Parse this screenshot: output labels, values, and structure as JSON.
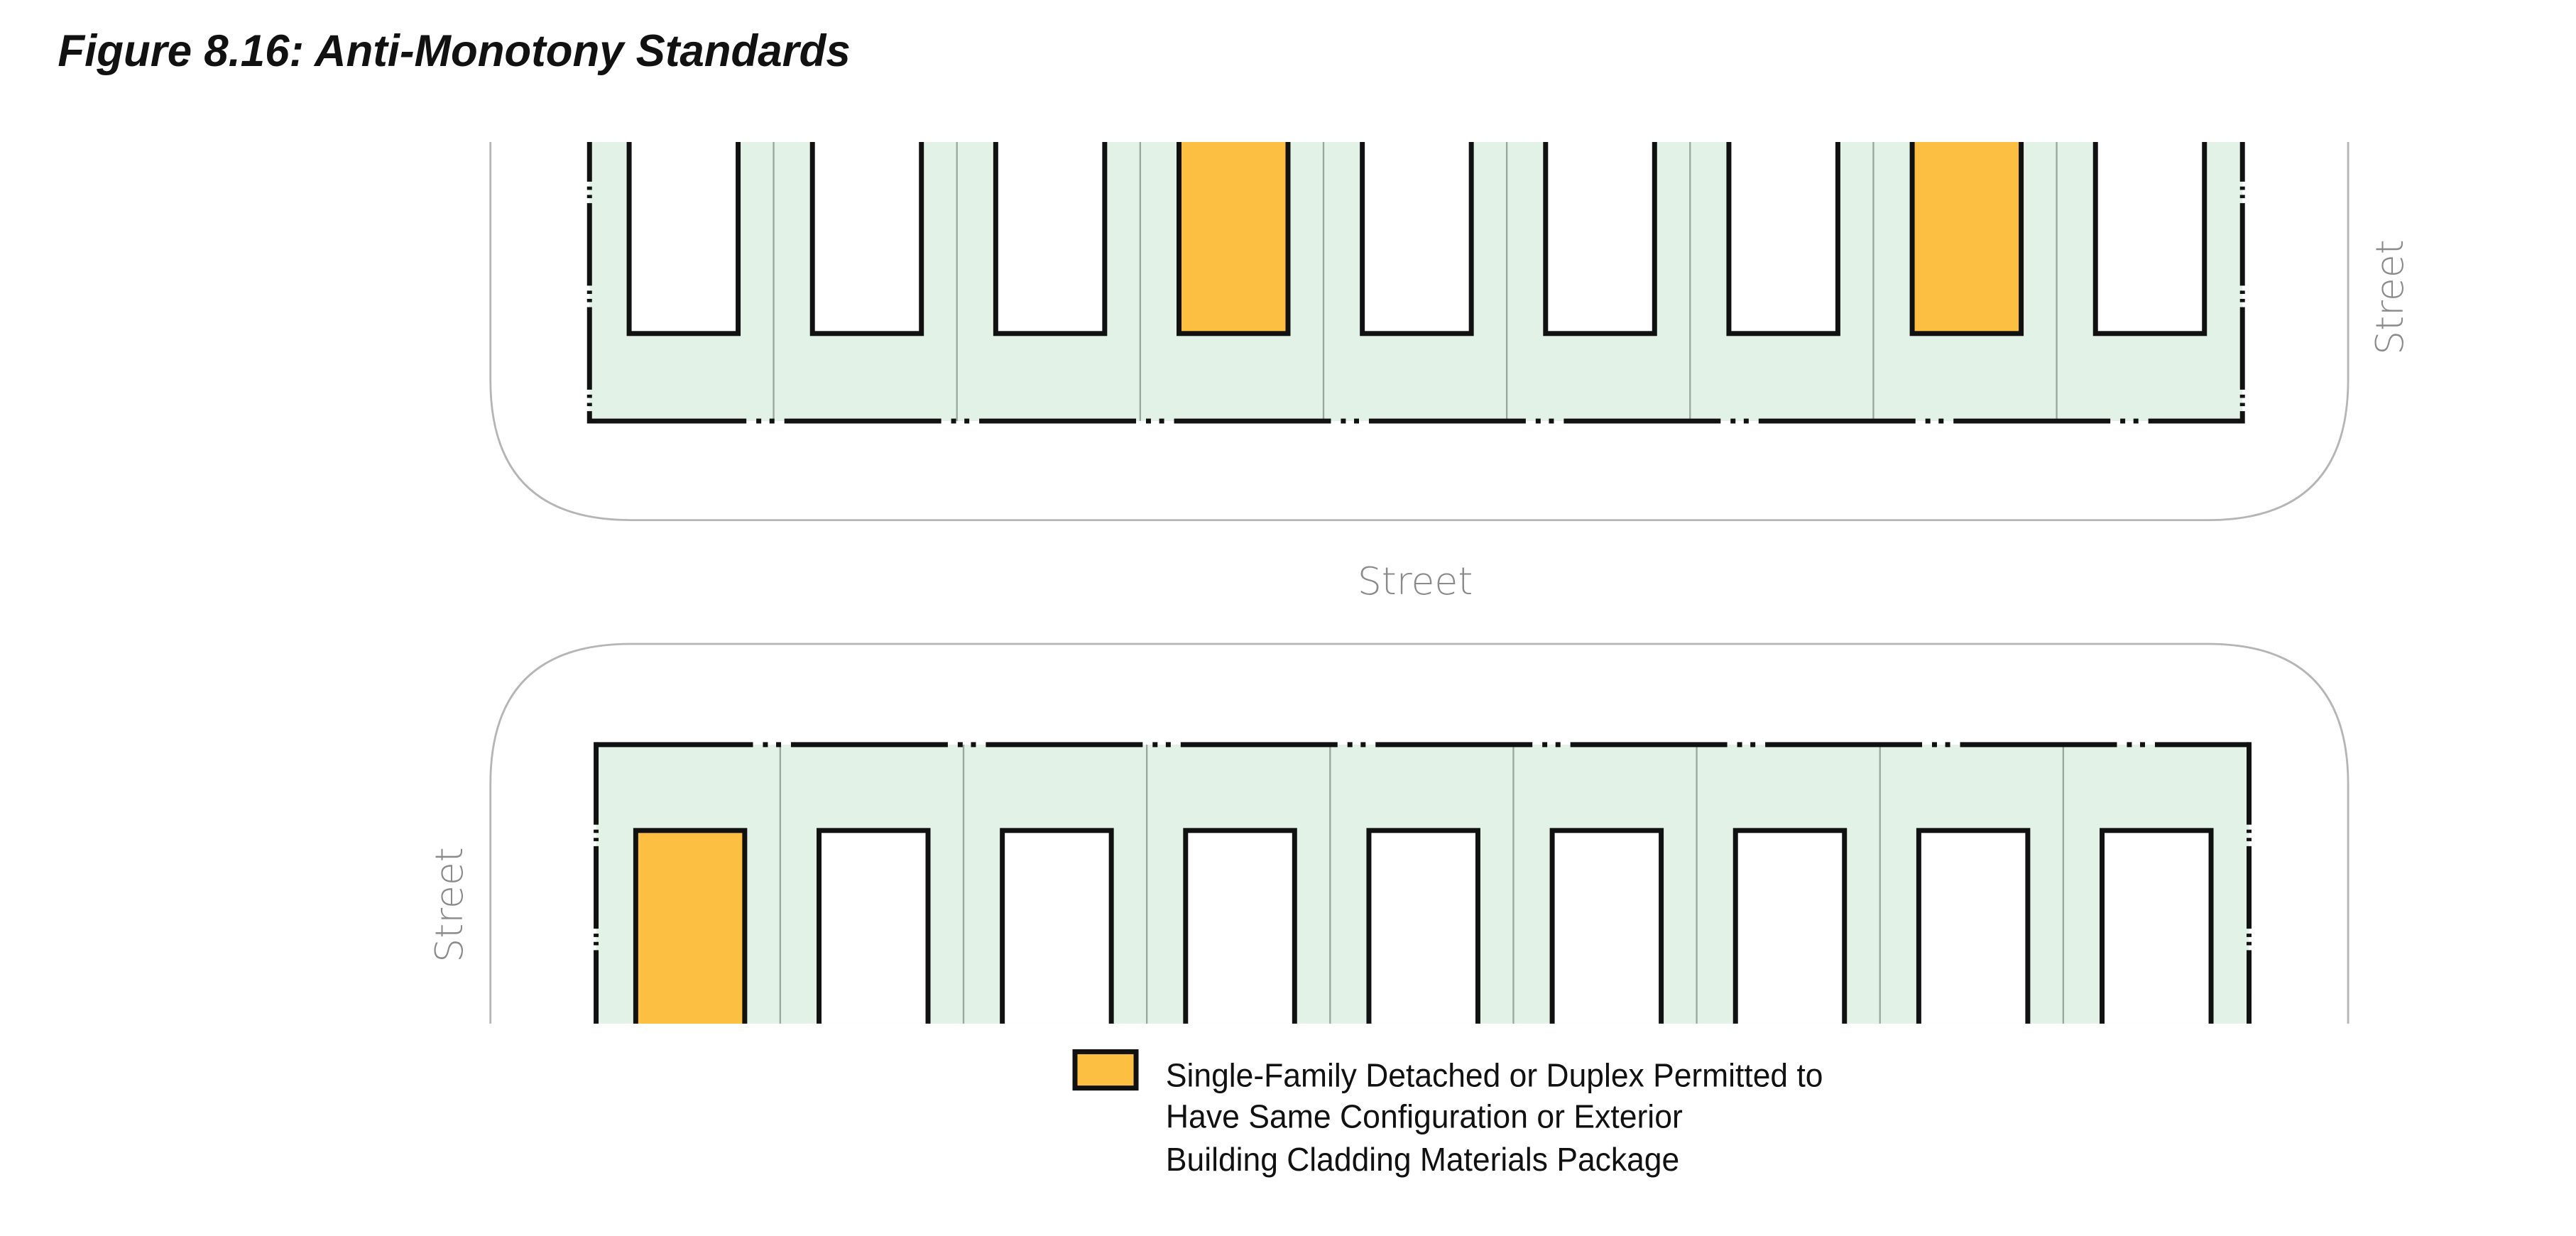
{
  "header": {
    "title": "Figure 8.16: Anti-Monotony Standards"
  },
  "streets": {
    "top_right": "Street",
    "middle": "Street",
    "bottom_left": "Street"
  },
  "legend": {
    "lines": [
      "Single-Family Detached or Duplex Permitted to",
      "Have Same Configuration or Exterior",
      "Building Cladding Materials Package"
    ]
  }
}
